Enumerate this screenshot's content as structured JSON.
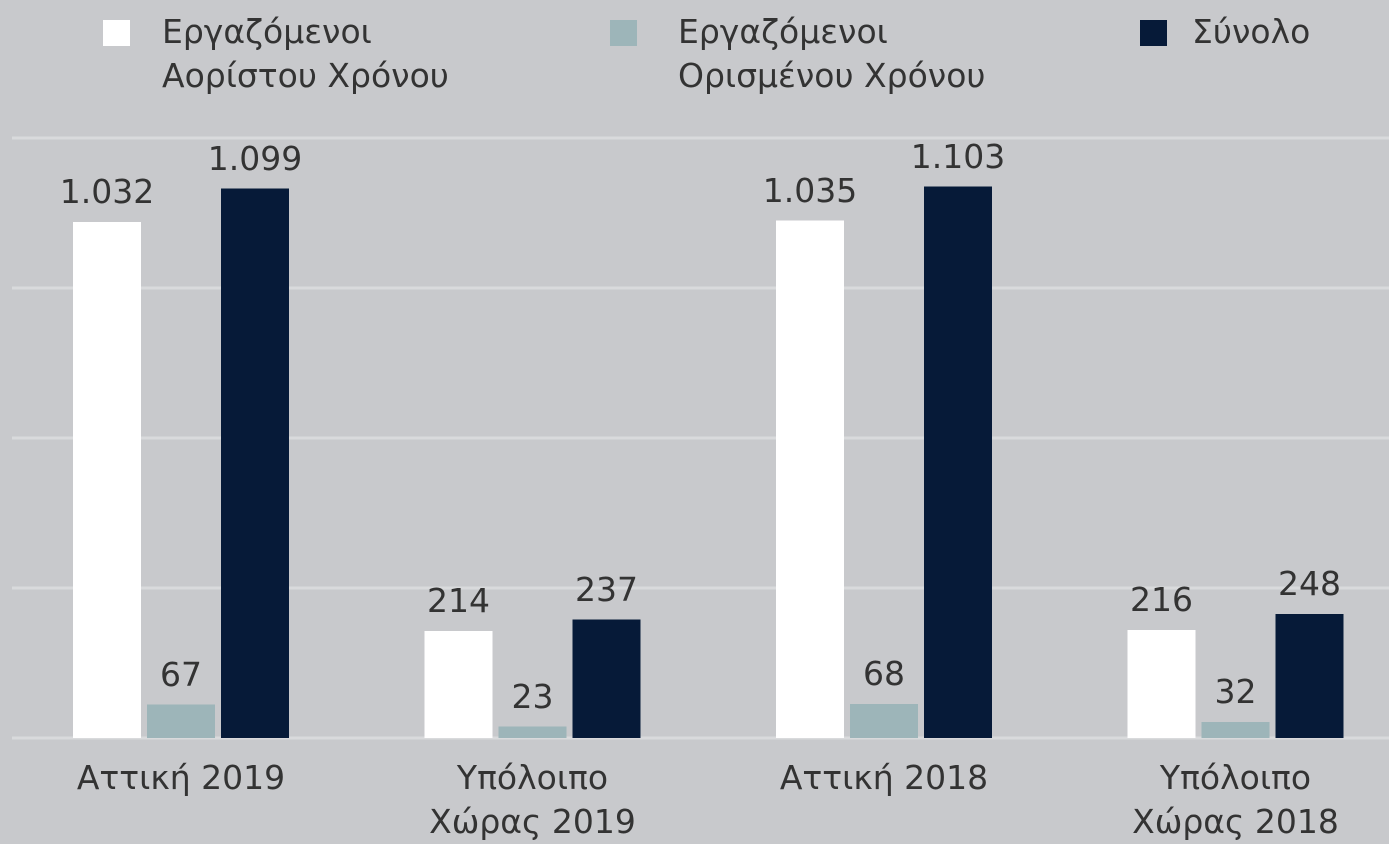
{
  "chart_data": {
    "type": "bar",
    "categories": [
      "Αττική 2019",
      "Υπόλοιπο Χώρας 2019",
      "Αττική 2018",
      "Υπόλοιπο Χώρας 2018"
    ],
    "series": [
      {
        "name": "Εργαζόμενοι Αορίστου Χρόνου",
        "color": "#ffffff",
        "values": [
          1032,
          214,
          1035,
          216
        ],
        "value_labels": [
          "1.032",
          "214",
          "1.035",
          "216"
        ]
      },
      {
        "name": "Εργαζόμενοι Ορισμένου Χρόνου",
        "color": "#9db5b9",
        "values": [
          67,
          23,
          68,
          32
        ],
        "value_labels": [
          "67",
          "23",
          "68",
          "32"
        ]
      },
      {
        "name": "Σύνολο",
        "color": "#061a38",
        "values": [
          1099,
          237,
          1103,
          248
        ],
        "value_labels": [
          "1.099",
          "237",
          "1.103",
          "248"
        ]
      }
    ],
    "ylim": [
      0,
      1200
    ],
    "yticks": [
      0,
      300,
      600,
      900,
      1200
    ],
    "grid": true,
    "legend": "top"
  }
}
